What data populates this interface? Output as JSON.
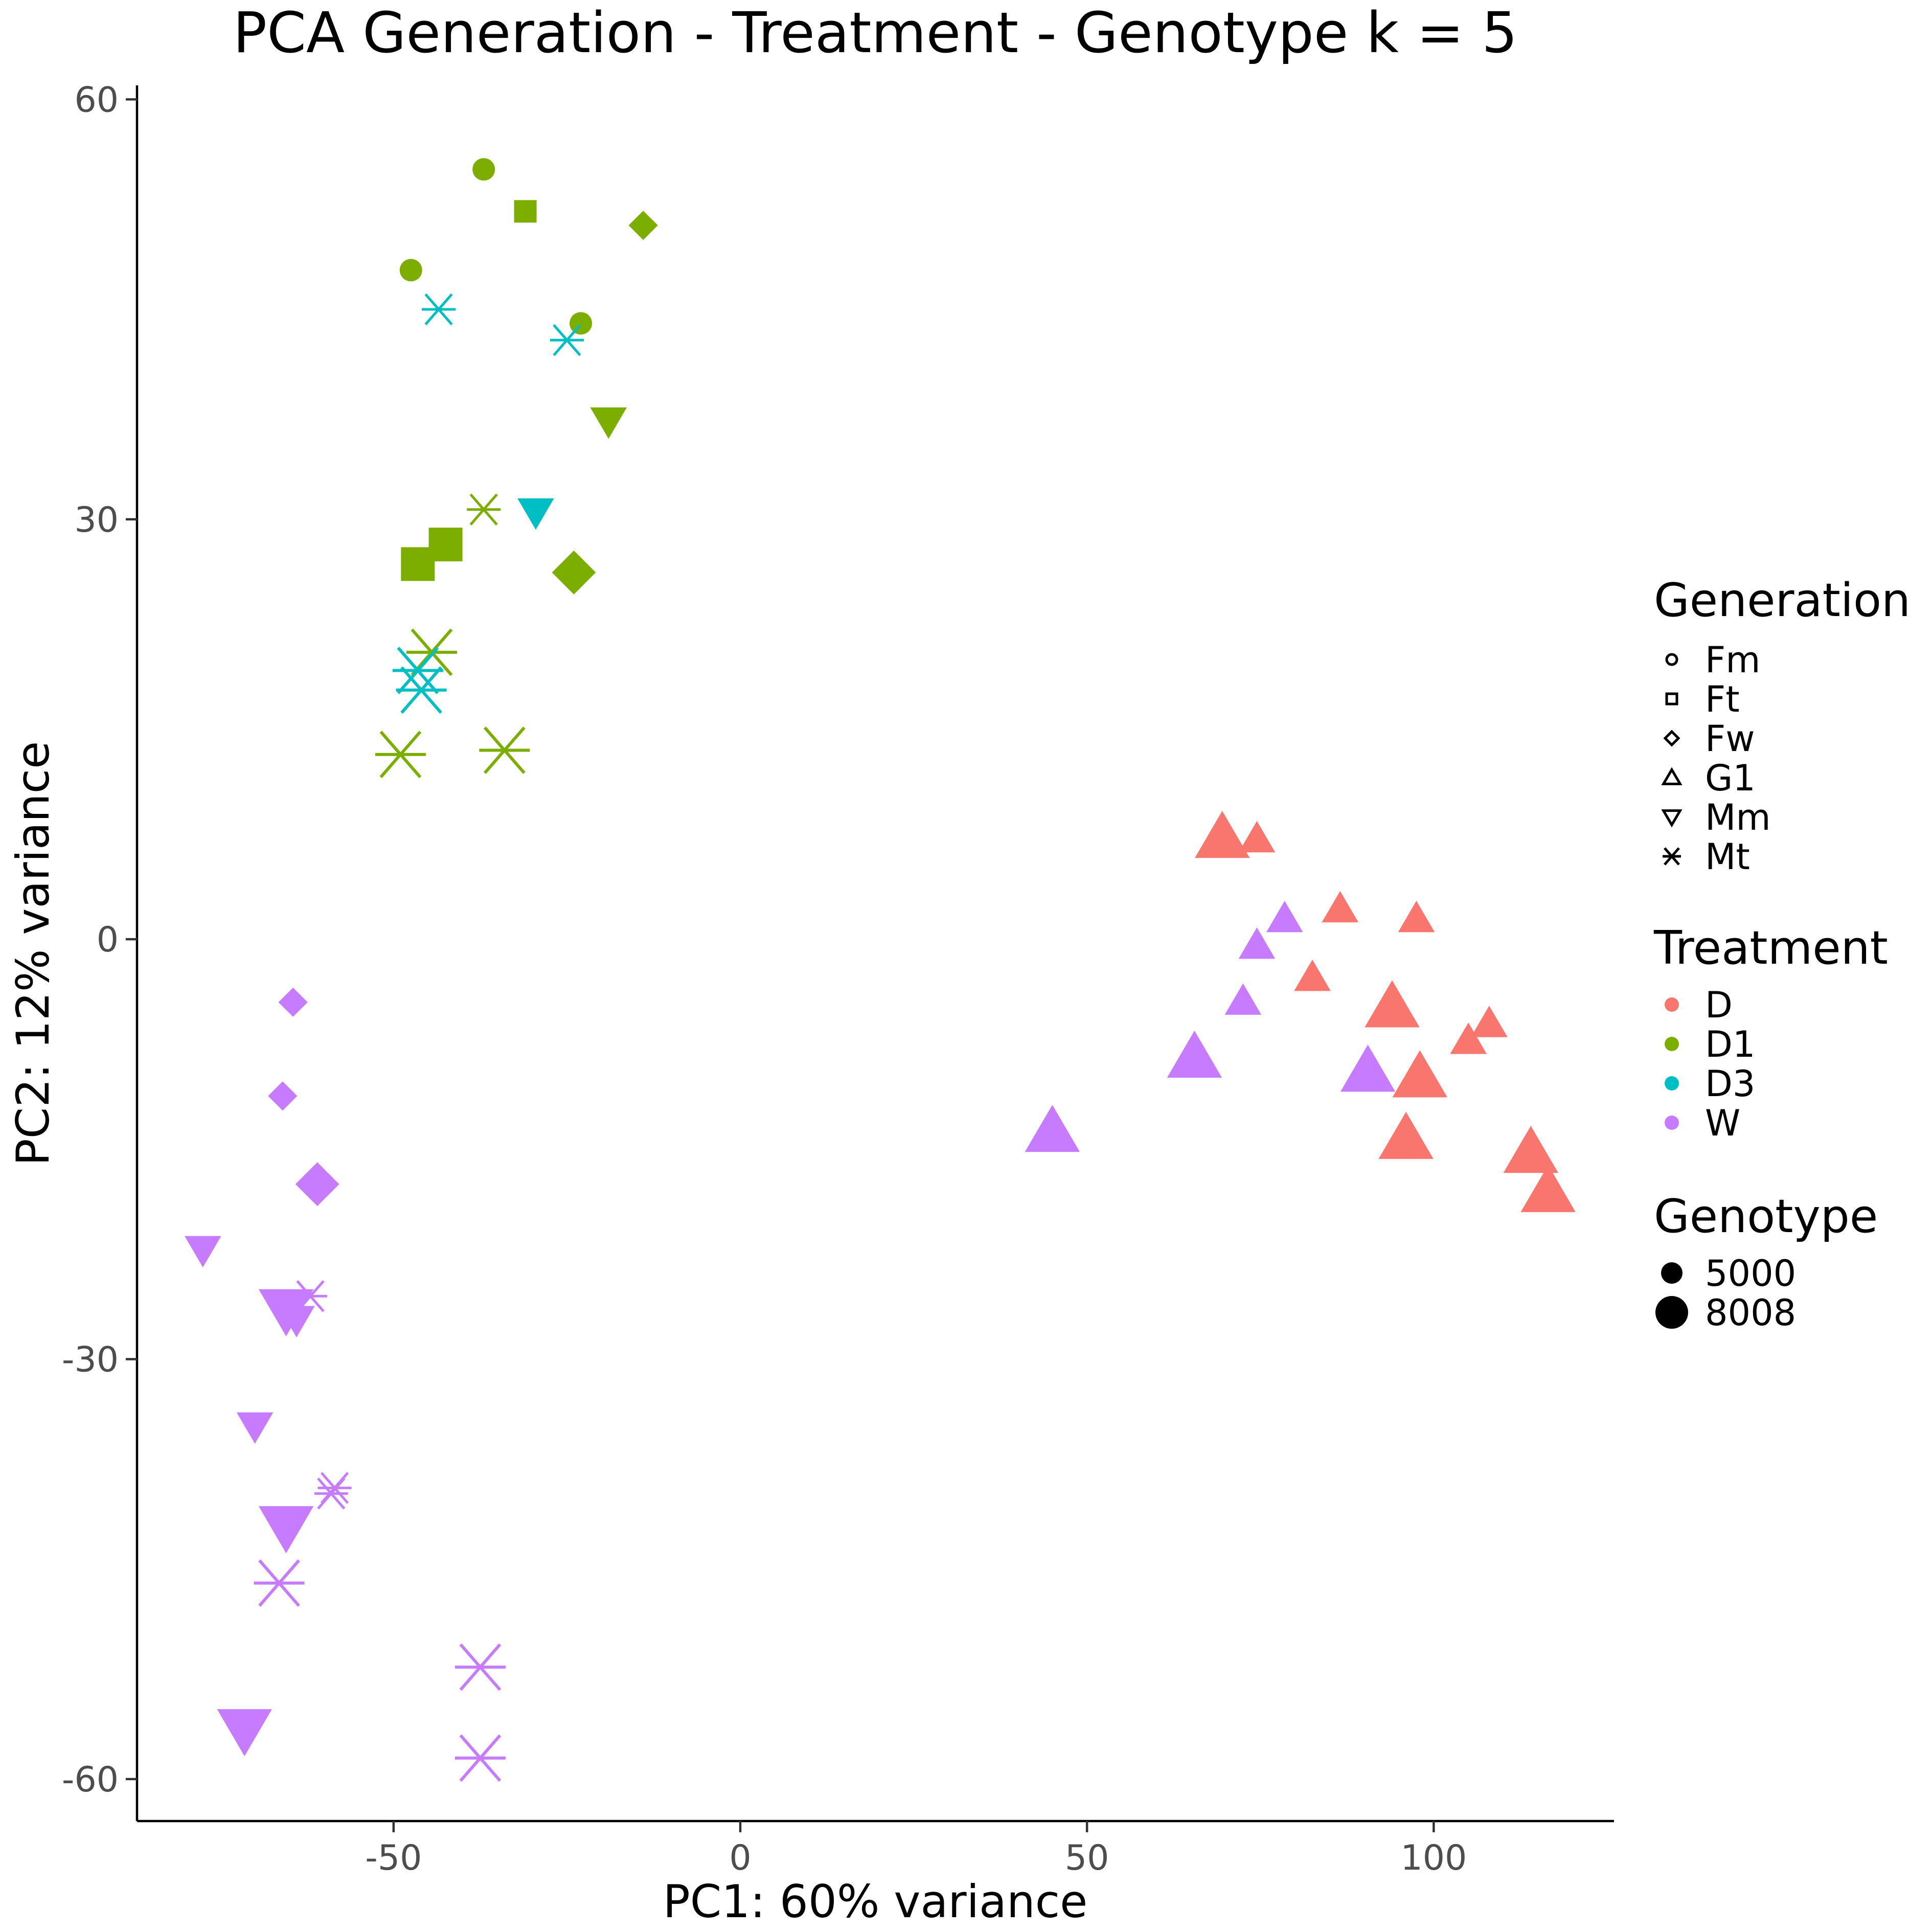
{
  "chart_data": {
    "type": "scatter",
    "title": "PCA Generation - Treatment - Genotype k = 5",
    "xlabel": "PC1: 60% variance",
    "ylabel": "PC2: 12% variance",
    "xlim": [
      -87,
      126
    ],
    "ylim": [
      -63,
      61
    ],
    "x_ticks": [
      {
        "value": -50,
        "label": "-50"
      },
      {
        "value": 0,
        "label": "0"
      },
      {
        "value": 50,
        "label": "50"
      },
      {
        "value": 100,
        "label": "100"
      }
    ],
    "y_ticks": [
      {
        "value": -60,
        "label": "-60"
      },
      {
        "value": -30,
        "label": "-30"
      },
      {
        "value": 0,
        "label": "0"
      },
      {
        "value": 30,
        "label": "30"
      },
      {
        "value": 60,
        "label": "60"
      }
    ],
    "grid": false,
    "legend_placement": "right",
    "legends": {
      "generation": {
        "title": "Generation",
        "items": [
          {
            "label": "Fm",
            "shape": "circle"
          },
          {
            "label": "Ft",
            "shape": "square"
          },
          {
            "label": "Fw",
            "shape": "diamond"
          },
          {
            "label": "G1",
            "shape": "triangle-up"
          },
          {
            "label": "Mm",
            "shape": "triangle-down"
          },
          {
            "label": "Mt",
            "shape": "asterisk"
          }
        ]
      },
      "treatment": {
        "title": "Treatment",
        "items": [
          {
            "label": "D",
            "color": "#F8766D"
          },
          {
            "label": "D1",
            "color": "#7CAE00"
          },
          {
            "label": "D3",
            "color": "#00BFC4"
          },
          {
            "label": "W",
            "color": "#C77CFF"
          }
        ]
      },
      "genotype": {
        "title": "Genotype",
        "items": [
          {
            "label": "5000",
            "size": "small"
          },
          {
            "label": "8008",
            "size": "large"
          }
        ]
      }
    },
    "points": [
      {
        "x": -37,
        "y": 55.0,
        "generation": "Fm",
        "treatment": "D1",
        "genotype": "5000"
      },
      {
        "x": -47.5,
        "y": 47.8,
        "generation": "Fm",
        "treatment": "D1",
        "genotype": "5000"
      },
      {
        "x": -23,
        "y": 44.0,
        "generation": "Fm",
        "treatment": "D1",
        "genotype": "5000"
      },
      {
        "x": -31,
        "y": 52.0,
        "generation": "Ft",
        "treatment": "D1",
        "genotype": "5000"
      },
      {
        "x": -46.5,
        "y": 26.8,
        "generation": "Ft",
        "treatment": "D1",
        "genotype": "8008"
      },
      {
        "x": -42.5,
        "y": 28.2,
        "generation": "Ft",
        "treatment": "D1",
        "genotype": "8008"
      },
      {
        "x": -14,
        "y": 51.0,
        "generation": "Fw",
        "treatment": "D1",
        "genotype": "5000"
      },
      {
        "x": -24,
        "y": 26.2,
        "generation": "Fw",
        "treatment": "D1",
        "genotype": "8008"
      },
      {
        "x": -19,
        "y": 37.0,
        "generation": "Mm",
        "treatment": "D1",
        "genotype": "5000"
      },
      {
        "x": -37,
        "y": 30.7,
        "generation": "Mt",
        "treatment": "D1",
        "genotype": "5000"
      },
      {
        "x": -44.5,
        "y": 20.5,
        "generation": "Mt",
        "treatment": "D1",
        "genotype": "8008"
      },
      {
        "x": -49,
        "y": 13.2,
        "generation": "Mt",
        "treatment": "D1",
        "genotype": "8008"
      },
      {
        "x": -34,
        "y": 13.5,
        "generation": "Mt",
        "treatment": "D1",
        "genotype": "8008"
      },
      {
        "x": -43.5,
        "y": 45.0,
        "generation": "Mt",
        "treatment": "D3",
        "genotype": "5000"
      },
      {
        "x": -25,
        "y": 42.8,
        "generation": "Mt",
        "treatment": "D3",
        "genotype": "5000"
      },
      {
        "x": -29.5,
        "y": 30.5,
        "generation": "Mm",
        "treatment": "D3",
        "genotype": "5000"
      },
      {
        "x": -46.5,
        "y": 19.2,
        "generation": "Mt",
        "treatment": "D3",
        "genotype": "8008"
      },
      {
        "x": -46,
        "y": 17.8,
        "generation": "Mt",
        "treatment": "D3",
        "genotype": "8008"
      },
      {
        "x": 69.5,
        "y": 7.3,
        "generation": "G1",
        "treatment": "D",
        "genotype": "8008"
      },
      {
        "x": 74.5,
        "y": 7.2,
        "generation": "G1",
        "treatment": "D",
        "genotype": "5000"
      },
      {
        "x": 86.5,
        "y": 2.2,
        "generation": "G1",
        "treatment": "D",
        "genotype": "5000"
      },
      {
        "x": 97.5,
        "y": 1.5,
        "generation": "G1",
        "treatment": "D",
        "genotype": "5000"
      },
      {
        "x": 82.5,
        "y": -2.7,
        "generation": "G1",
        "treatment": "D",
        "genotype": "5000"
      },
      {
        "x": 94,
        "y": -4.8,
        "generation": "G1",
        "treatment": "D",
        "genotype": "8008"
      },
      {
        "x": 105,
        "y": -7.2,
        "generation": "G1",
        "treatment": "D",
        "genotype": "5000"
      },
      {
        "x": 108,
        "y": -6.0,
        "generation": "G1",
        "treatment": "D",
        "genotype": "5000"
      },
      {
        "x": 98,
        "y": -9.8,
        "generation": "G1",
        "treatment": "D",
        "genotype": "8008"
      },
      {
        "x": 96,
        "y": -14.2,
        "generation": "G1",
        "treatment": "D",
        "genotype": "8008"
      },
      {
        "x": 114,
        "y": -15.2,
        "generation": "G1",
        "treatment": "D",
        "genotype": "8008"
      },
      {
        "x": 116.5,
        "y": -18.0,
        "generation": "G1",
        "treatment": "D",
        "genotype": "8008"
      },
      {
        "x": 78.5,
        "y": 1.5,
        "generation": "G1",
        "treatment": "W",
        "genotype": "5000"
      },
      {
        "x": 74.5,
        "y": -0.4,
        "generation": "G1",
        "treatment": "W",
        "genotype": "5000"
      },
      {
        "x": 72.5,
        "y": -4.4,
        "generation": "G1",
        "treatment": "W",
        "genotype": "5000"
      },
      {
        "x": 65.5,
        "y": -8.4,
        "generation": "G1",
        "treatment": "W",
        "genotype": "8008"
      },
      {
        "x": 90.5,
        "y": -9.4,
        "generation": "G1",
        "treatment": "W",
        "genotype": "8008"
      },
      {
        "x": 45,
        "y": -13.7,
        "generation": "G1",
        "treatment": "W",
        "genotype": "8008"
      },
      {
        "x": -64.5,
        "y": -4.5,
        "generation": "Fw",
        "treatment": "W",
        "genotype": "5000"
      },
      {
        "x": -66,
        "y": -11.2,
        "generation": "Fw",
        "treatment": "W",
        "genotype": "5000"
      },
      {
        "x": -61,
        "y": -17.5,
        "generation": "Fw",
        "treatment": "W",
        "genotype": "8008"
      },
      {
        "x": -77.5,
        "y": -22.2,
        "generation": "Mm",
        "treatment": "W",
        "genotype": "5000"
      },
      {
        "x": -65.5,
        "y": -26.5,
        "generation": "Mm",
        "treatment": "W",
        "genotype": "8008"
      },
      {
        "x": -64,
        "y": -27.2,
        "generation": "Mm",
        "treatment": "W",
        "genotype": "5000"
      },
      {
        "x": -70,
        "y": -34.8,
        "generation": "Mm",
        "treatment": "W",
        "genotype": "5000"
      },
      {
        "x": -65.5,
        "y": -42.0,
        "generation": "Mm",
        "treatment": "W",
        "genotype": "8008"
      },
      {
        "x": -71.5,
        "y": -56.5,
        "generation": "Mm",
        "treatment": "W",
        "genotype": "8008"
      },
      {
        "x": -62,
        "y": -25.5,
        "generation": "Mt",
        "treatment": "W",
        "genotype": "5000"
      },
      {
        "x": -58.5,
        "y": -39.2,
        "generation": "Mt",
        "treatment": "W",
        "genotype": "5000"
      },
      {
        "x": -59,
        "y": -39.6,
        "generation": "Mt",
        "treatment": "W",
        "genotype": "5000"
      },
      {
        "x": -66.5,
        "y": -46.0,
        "generation": "Mt",
        "treatment": "W",
        "genotype": "8008"
      },
      {
        "x": -37.5,
        "y": -52.0,
        "generation": "Mt",
        "treatment": "W",
        "genotype": "8008"
      },
      {
        "x": -37.5,
        "y": -58.5,
        "generation": "Mt",
        "treatment": "W",
        "genotype": "8008"
      }
    ]
  }
}
